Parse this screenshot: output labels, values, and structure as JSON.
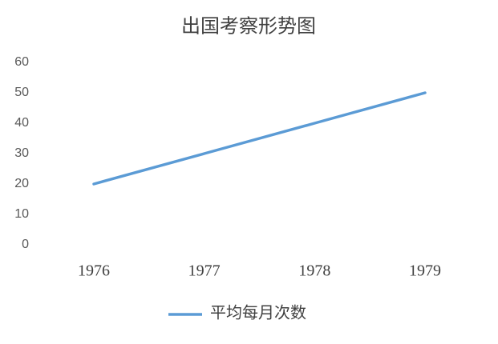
{
  "chart_data": {
    "type": "line",
    "title": "出国考察形势图",
    "categories": [
      "1976",
      "1977",
      "1978",
      "1979"
    ],
    "series": [
      {
        "name": "平均每月次数",
        "color": "#5b9bd5",
        "values": [
          20,
          30,
          40,
          50
        ]
      }
    ],
    "ylim": [
      0,
      60
    ],
    "yticks": [
      0,
      10,
      20,
      30,
      40,
      50,
      60
    ],
    "grid": false,
    "legend": "bottom"
  }
}
